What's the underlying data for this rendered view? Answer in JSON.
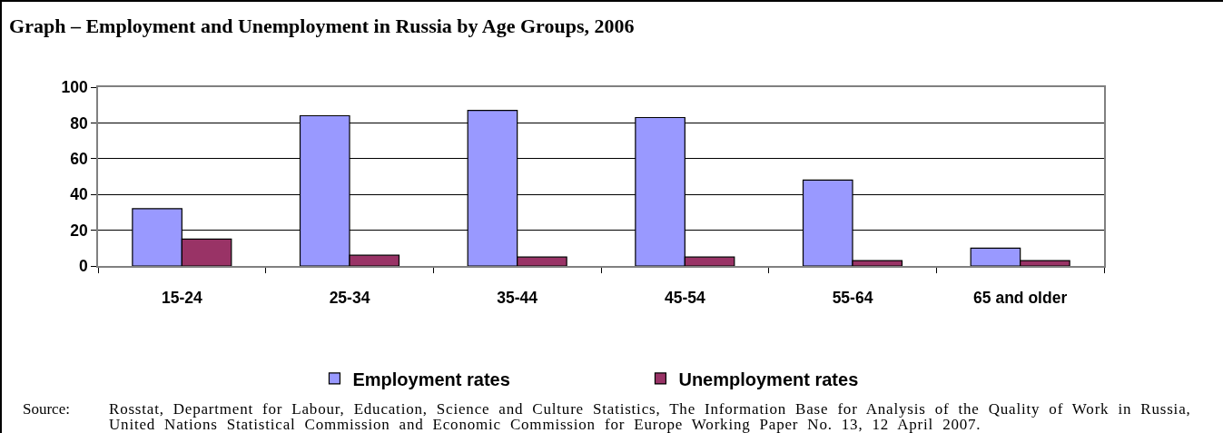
{
  "chart_data": {
    "type": "bar",
    "title": "Graph – Employment and Unemployment in Russia by Age Groups, 2006",
    "categories": [
      "15-24",
      "25-34",
      "35-44",
      "45-54",
      "55-64",
      "65 and older"
    ],
    "series": [
      {
        "name": "Employment rates",
        "color": "#9999ff",
        "values": [
          32,
          84,
          87,
          83,
          48,
          10
        ]
      },
      {
        "name": "Unemployment rates",
        "color": "#993366",
        "values": [
          15,
          6,
          5,
          5,
          3,
          3
        ]
      }
    ],
    "ylim": [
      0,
      100
    ],
    "yticks": [
      0,
      20,
      40,
      60,
      80,
      100
    ],
    "grid": "y",
    "legend": "bottom",
    "annotations": [
      "Source: Rosstat, Department for Labour, Education, Science and Culture Statistics, The Information Base for Analysis of the Quality of Work in Russia, United Nations Statistical Commission and Economic Commission for Europe Working Paper No. 13, 12 April 2007."
    ]
  }
}
